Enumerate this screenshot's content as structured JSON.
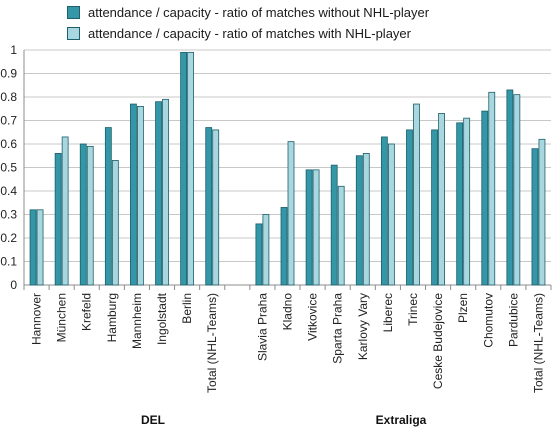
{
  "colors": {
    "without": "#3397a8",
    "with": "#a9d7df",
    "outline": "#1d5f6a"
  },
  "chart_data": {
    "type": "bar",
    "title": "",
    "xlabel": "",
    "ylabel": "",
    "ylim": [
      0,
      1
    ],
    "yticks": [
      "0",
      "0.1",
      "0.2",
      "0.3",
      "0.4",
      "0.5",
      "0.6",
      "0.7",
      "0.8",
      "0.9",
      "1"
    ],
    "grid": true,
    "legend_position": "top-left",
    "groups": [
      {
        "name": "DEL",
        "categories": [
          "Hannover",
          "München",
          "Krefeld",
          "Hamburg",
          "Mannheim",
          "Ingolstadt",
          "Berlin",
          "Total (NHL-Teams)"
        ]
      },
      {
        "name": "Extraliga",
        "categories": [
          "Slavia Praha",
          "Kladno",
          "Vitkovice",
          "Sparta Praha",
          "Karlovy Vary",
          "Liberec",
          "Trinec",
          "Ceske Budejovice",
          "Plzen",
          "Chomutov",
          "Pardubice",
          "Total (NHL-Teams)"
        ]
      }
    ],
    "series": [
      {
        "name": "attendance / capacity - ratio of matches without NHL-player",
        "values": [
          [
            0.32,
            0.56,
            0.6,
            0.67,
            0.77,
            0.78,
            0.99,
            0.67
          ],
          [
            0.26,
            0.33,
            0.49,
            0.51,
            0.55,
            0.63,
            0.66,
            0.66,
            0.69,
            0.74,
            0.83,
            0.58
          ]
        ]
      },
      {
        "name": "attendance / capacity - ratio of matches with NHL-player",
        "values": [
          [
            0.32,
            0.63,
            0.59,
            0.53,
            0.76,
            0.79,
            0.99,
            0.66
          ],
          [
            0.3,
            0.61,
            0.49,
            0.42,
            0.56,
            0.6,
            0.77,
            0.73,
            0.71,
            0.82,
            0.81,
            0.62
          ]
        ]
      }
    ]
  }
}
